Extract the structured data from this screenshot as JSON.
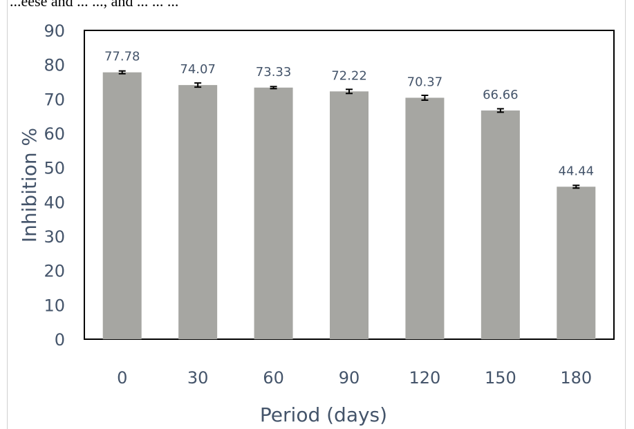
{
  "caption_fragment": "...eese and ... ..., and ... ... ...",
  "colors": {
    "bar": "#a6a6a2",
    "text": "#44546a",
    "axis": "#000000"
  },
  "chart_data": {
    "type": "bar",
    "title": "",
    "xlabel": "Period (days)",
    "ylabel": "Inhibition %",
    "ylim": [
      0,
      90
    ],
    "yticks": [
      0,
      10,
      20,
      30,
      40,
      50,
      60,
      70,
      80,
      90
    ],
    "categories": [
      "0",
      "30",
      "60",
      "90",
      "120",
      "150",
      "180"
    ],
    "series": [
      {
        "values": [
          77.78,
          74.07,
          73.33,
          72.22,
          70.37,
          66.66,
          44.44
        ],
        "labels": [
          "77.78",
          "74.07",
          "73.33",
          "72.22",
          "70.37",
          "66.66",
          "44.44"
        ],
        "error": [
          0.4,
          0.6,
          0.3,
          0.6,
          0.7,
          0.5,
          0.4
        ]
      }
    ],
    "grid": false,
    "legend": "none"
  }
}
